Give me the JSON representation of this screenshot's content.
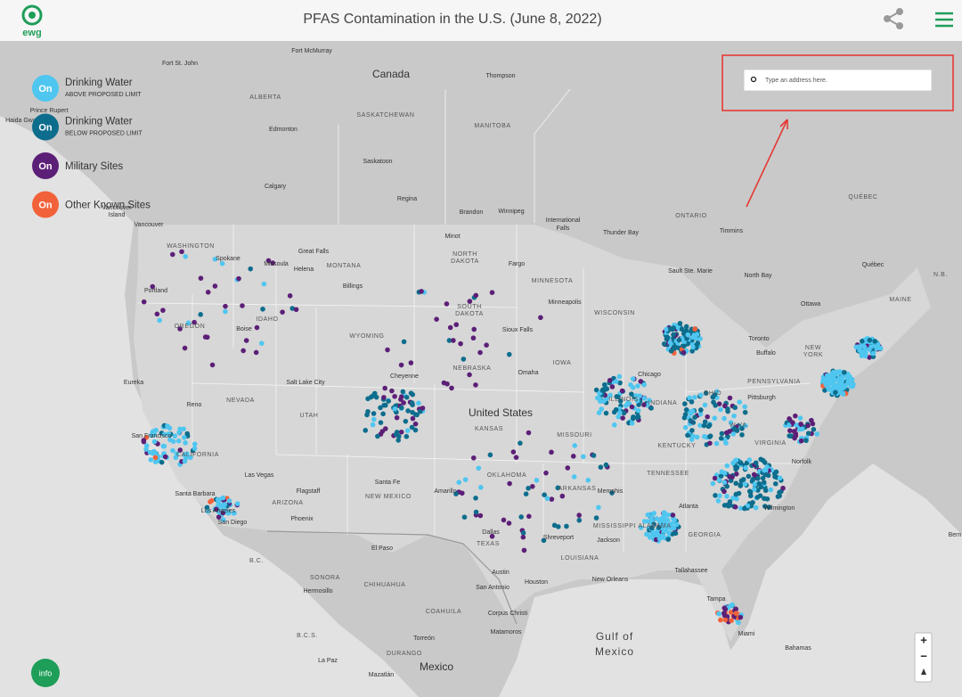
{
  "header": {
    "logo": "ewg",
    "title": "PFAS Contamination in the U.S. (June 8, 2022)"
  },
  "legend": {
    "items": [
      {
        "toggle": "On",
        "label": "Drinking Water",
        "sublabel": "ABOVE PROPOSED LIMIT"
      },
      {
        "toggle": "On",
        "label": "Drinking Water",
        "sublabel": "BELOW PROPOSED LIMIT"
      },
      {
        "toggle": "On",
        "label": "Military Sites"
      },
      {
        "toggle": "On",
        "label": "Other Known Sites"
      }
    ]
  },
  "search": {
    "placeholder": "Type an address here."
  },
  "info_button": "info",
  "zoom_controls": [
    "+",
    "−"
  ],
  "map": {
    "countries": [
      "Canada",
      "United States",
      "Mexico"
    ],
    "water": [
      "Gulf of",
      "Mexico"
    ],
    "regions": [
      "ALBERTA",
      "SASKATCHEWAN",
      "MANITOBA",
      "ONTARIO",
      "QUÉBEC",
      "N.B.",
      "WASHINGTON",
      "OREGON",
      "CALIFORNIA",
      "NEVADA",
      "IDAHO",
      "MONTANA",
      "WYOMING",
      "UTAH",
      "ARIZONA",
      "NEW MEXICO",
      "TEXAS",
      "OKLAHOMA",
      "KANSAS",
      "NEBRASKA",
      "SOUTH",
      "DAKOTA",
      "NORTH",
      "DAKOTA",
      "MINNESOTA",
      "IOWA",
      "MISSOURI",
      "ARKANSAS",
      "LOUISIANA",
      "MISSISSIPPI",
      "ALABAMA",
      "GEORGIA",
      "TENNESSEE",
      "KENTUCKY",
      "INDIANA",
      "ILLINOIS",
      "OHIO",
      "WISCONSIN",
      "PENNSYLVANIA",
      "NEW",
      "YORK",
      "VIRGINIA",
      "W.VA.",
      "MAINE",
      "SONORA",
      "CHIHUAHUA",
      "COAHUILA",
      "DURANGO",
      "B.C.",
      "B.C.S."
    ],
    "cities": [
      "Fort St. John",
      "Fort McMurray",
      "Thompson",
      "Edmonton",
      "Saskatoon",
      "Calgary",
      "Regina",
      "Brandon",
      "Winnipeg",
      "International",
      "Falls",
      "Thunder Bay",
      "Timmins",
      "Sault Ste. Marie",
      "North Bay",
      "Ottawa",
      "Québec",
      "Toronto",
      "Buffalo",
      "Prince Rupert",
      "Haida Gwaii",
      "Vancouver",
      "Island",
      "Vancouver",
      "Portland",
      "Spokane",
      "Missoula",
      "Great Falls",
      "Helena",
      "Billings",
      "Boise",
      "Minot",
      "Fargo",
      "Minneapolis",
      "Sioux Falls",
      "Omaha",
      "Cheyenne",
      "Salt Lake City",
      "Reno",
      "Eureka",
      "San Francisco",
      "Santa Barbara",
      "Los Angeles",
      "San Diego",
      "Las Vegas",
      "Flagstaff",
      "Phoenix",
      "Santa Fe",
      "Amarillo",
      "El Paso",
      "Dallas",
      "Austin",
      "San Antonio",
      "Houston",
      "Corpus Christi",
      "Shreveport",
      "Jackson",
      "New Orleans",
      "Memphis",
      "Atlanta",
      "Tallahassee",
      "Tampa",
      "Miami",
      "Chicago",
      "Pittsburgh",
      "Norfolk",
      "Wilmington",
      "Hermosillo",
      "Torreón",
      "Matamoros",
      "La Paz",
      "Mazatlán",
      "Bahamas",
      "Bern"
    ]
  }
}
